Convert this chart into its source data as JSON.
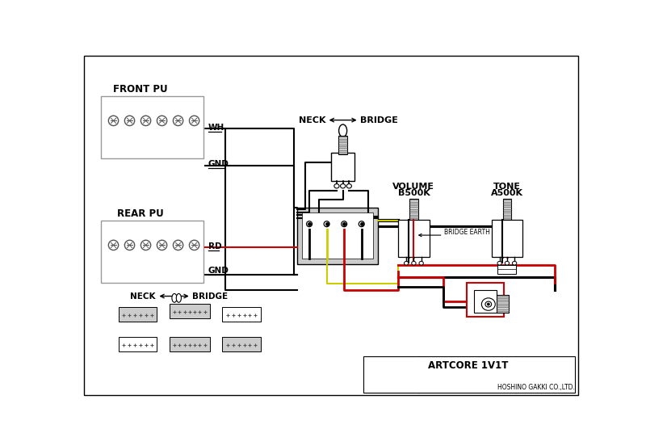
{
  "title": "ARTCORE 1V1T",
  "company": "HOSHINO GAKKI CO.,LTD.",
  "front_pu_label": "FRONT PU",
  "rear_pu_label": "REAR PU",
  "wh_label": "WH",
  "gnd_label": "GND",
  "rd_label": "RD",
  "volume_label1": "VOLUME",
  "volume_label2": "B500K",
  "tone_label1": "TONE",
  "tone_label2": "A500K",
  "bridge_earth_label": "BRIDGE EARTH",
  "neck_label": "NECK",
  "bridge_label2": "BRIDGE",
  "black": "#000000",
  "red": "#cc0000",
  "yellow": "#cccc00",
  "gray": "#999999",
  "lgray": "#cccccc",
  "dgray": "#555555"
}
